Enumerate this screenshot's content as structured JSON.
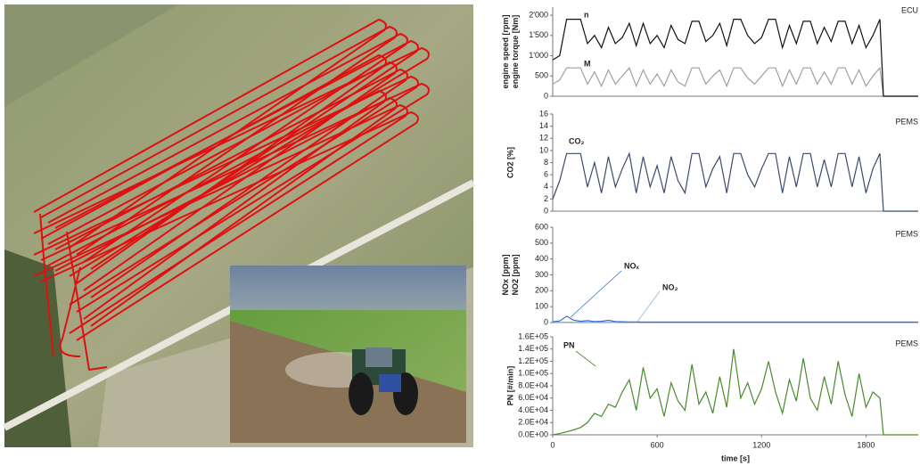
{
  "chart_data": [
    {
      "type": "line",
      "ylabel": [
        "engine speed [rpm]",
        "engine torque [Nm]"
      ],
      "annotations": [
        "ECU",
        "n",
        "M"
      ],
      "x": [
        0,
        40,
        80,
        120,
        160,
        200,
        240,
        280,
        320,
        360,
        400,
        440,
        480,
        520,
        560,
        600,
        640,
        680,
        720,
        760,
        800,
        840,
        880,
        920,
        960,
        1000,
        1040,
        1080,
        1120,
        1160,
        1200,
        1240,
        1280,
        1320,
        1360,
        1400,
        1440,
        1480,
        1520,
        1560,
        1600,
        1640,
        1680,
        1720,
        1760,
        1800,
        1840,
        1880,
        1900,
        2100
      ],
      "xlim": [
        0,
        2100
      ],
      "ylim": [
        0,
        2200
      ],
      "yticks": [
        0,
        500,
        {
          "value": 1000,
          "label": "1'000"
        },
        {
          "value": 1500,
          "label": "1'500"
        },
        {
          "value": 2000,
          "label": "2'000"
        }
      ],
      "series": [
        {
          "name": "n",
          "color": "#111111",
          "values": [
            900,
            1000,
            1900,
            1900,
            1900,
            1300,
            1500,
            1200,
            1700,
            1300,
            1450,
            1800,
            1250,
            1800,
            1300,
            1500,
            1200,
            1750,
            1400,
            1300,
            1850,
            1850,
            1350,
            1500,
            1800,
            1250,
            1900,
            1900,
            1500,
            1300,
            1450,
            1900,
            1900,
            1200,
            1750,
            1300,
            1850,
            1850,
            1300,
            1700,
            1350,
            1850,
            1850,
            1300,
            1750,
            1200,
            1500,
            1900,
            0,
            0
          ]
        },
        {
          "name": "M",
          "color": "#a0a0a0",
          "values": [
            300,
            400,
            700,
            700,
            700,
            300,
            600,
            250,
            650,
            300,
            500,
            700,
            250,
            650,
            300,
            550,
            250,
            650,
            350,
            250,
            700,
            700,
            300,
            500,
            650,
            250,
            700,
            700,
            450,
            300,
            500,
            700,
            700,
            250,
            650,
            300,
            700,
            700,
            300,
            600,
            300,
            700,
            700,
            300,
            650,
            250,
            500,
            700,
            0,
            0
          ]
        }
      ]
    },
    {
      "type": "line",
      "ylabel": [
        "CO2 [%]"
      ],
      "annotations": [
        "PEMS",
        "CO₂"
      ],
      "x": [
        0,
        40,
        80,
        120,
        160,
        200,
        240,
        280,
        320,
        360,
        400,
        440,
        480,
        520,
        560,
        600,
        640,
        680,
        720,
        760,
        800,
        840,
        880,
        920,
        960,
        1000,
        1040,
        1080,
        1120,
        1160,
        1200,
        1240,
        1280,
        1320,
        1360,
        1400,
        1440,
        1480,
        1520,
        1560,
        1600,
        1640,
        1680,
        1720,
        1760,
        1800,
        1840,
        1880,
        1900,
        2100
      ],
      "xlim": [
        0,
        2100
      ],
      "ylim": [
        0,
        16
      ],
      "yticks": [
        0,
        2,
        4,
        6,
        8,
        10,
        12,
        14,
        16
      ],
      "series": [
        {
          "name": "CO₂",
          "color": "#3b4a6b",
          "values": [
            2,
            5,
            9.5,
            9.5,
            9.5,
            4,
            8,
            3,
            9,
            4,
            7,
            9.5,
            3,
            9,
            4,
            7.5,
            3,
            9,
            5,
            3,
            9.5,
            9.5,
            4,
            7,
            9,
            3,
            9.5,
            9.5,
            6,
            4,
            7,
            9.5,
            9.5,
            3,
            9,
            4,
            9.5,
            9.5,
            4,
            8.5,
            4,
            9.5,
            9.5,
            4,
            9,
            3,
            7,
            9.5,
            0,
            0
          ]
        }
      ]
    },
    {
      "type": "line",
      "ylabel": [
        "NOx [ppm]",
        "NO2 [ppm]"
      ],
      "annotations": [
        "PEMS",
        "NOₓ",
        "NO₂"
      ],
      "x": [
        0,
        40,
        80,
        120,
        160,
        200,
        240,
        280,
        320,
        360,
        400,
        440,
        480,
        520,
        560,
        600,
        640,
        680,
        720,
        760,
        800,
        840,
        880,
        920,
        960,
        1000,
        1040,
        1080,
        1120,
        1160,
        1200,
        1240,
        1280,
        1320,
        1360,
        1400,
        1440,
        1480,
        1520,
        1560,
        1600,
        1640,
        1680,
        1720,
        1760,
        1800,
        1840,
        1880,
        1900,
        2100
      ],
      "xlim": [
        0,
        2100
      ],
      "ylim": [
        0,
        600
      ],
      "yticks": [
        0,
        100,
        200,
        300,
        400,
        500,
        600
      ],
      "series": [
        {
          "name": "NOₓ",
          "color": "#2f6fd0",
          "values": [
            5,
            10,
            40,
            15,
            8,
            12,
            6,
            8,
            14,
            6,
            5,
            4,
            4,
            3,
            3,
            3,
            3,
            3,
            3,
            3,
            3,
            3,
            3,
            3,
            3,
            3,
            3,
            3,
            3,
            3,
            3,
            3,
            3,
            3,
            3,
            3,
            3,
            3,
            3,
            3,
            3,
            3,
            3,
            3,
            3,
            3,
            3,
            3,
            3,
            3
          ]
        },
        {
          "name": "NO₂",
          "color": "#8fb4e8",
          "values": [
            2,
            2,
            3,
            2,
            2,
            2,
            2,
            2,
            2,
            2,
            2,
            2,
            2,
            2,
            2,
            2,
            2,
            2,
            2,
            2,
            2,
            2,
            2,
            2,
            2,
            2,
            2,
            2,
            2,
            2,
            2,
            2,
            2,
            2,
            2,
            2,
            2,
            2,
            2,
            2,
            2,
            2,
            2,
            2,
            2,
            2,
            2,
            2,
            2,
            2
          ]
        }
      ]
    },
    {
      "type": "line",
      "ylabel": [
        "PN [#/min]"
      ],
      "annotations": [
        "PEMS",
        "PN"
      ],
      "xlabel": "time [s]",
      "x": [
        0,
        40,
        80,
        120,
        160,
        200,
        240,
        280,
        320,
        360,
        400,
        440,
        480,
        520,
        560,
        600,
        640,
        680,
        720,
        760,
        800,
        840,
        880,
        920,
        960,
        1000,
        1040,
        1080,
        1120,
        1160,
        1200,
        1240,
        1280,
        1320,
        1360,
        1400,
        1440,
        1480,
        1520,
        1560,
        1600,
        1640,
        1680,
        1720,
        1760,
        1800,
        1840,
        1880,
        1900,
        2100
      ],
      "xlim": [
        0,
        2100
      ],
      "xticks": [
        0,
        600,
        1200,
        1800
      ],
      "ylim": [
        0,
        160000
      ],
      "yticks": [
        {
          "value": 0,
          "label": "0.0E+00"
        },
        {
          "value": 20000,
          "label": "2.0E+04"
        },
        {
          "value": 40000,
          "label": "4.0E+04"
        },
        {
          "value": 60000,
          "label": "6.0E+04"
        },
        {
          "value": 80000,
          "label": "8.0E+04"
        },
        {
          "value": 100000,
          "label": "1.0E+05"
        },
        {
          "value": 120000,
          "label": "1.2E+05"
        },
        {
          "value": 140000,
          "label": "1.4E+05"
        },
        {
          "value": 160000,
          "label": "1.6E+05"
        }
      ],
      "series": [
        {
          "name": "PN",
          "color": "#4a8a2e",
          "values": [
            0,
            2000,
            5000,
            8000,
            12000,
            20000,
            35000,
            30000,
            50000,
            45000,
            70000,
            90000,
            40000,
            110000,
            60000,
            75000,
            30000,
            85000,
            55000,
            40000,
            115000,
            50000,
            70000,
            35000,
            95000,
            45000,
            140000,
            60000,
            85000,
            50000,
            75000,
            120000,
            70000,
            35000,
            90000,
            55000,
            125000,
            60000,
            40000,
            95000,
            50000,
            120000,
            65000,
            30000,
            100000,
            45000,
            70000,
            60000,
            0,
            0
          ]
        }
      ]
    }
  ]
}
